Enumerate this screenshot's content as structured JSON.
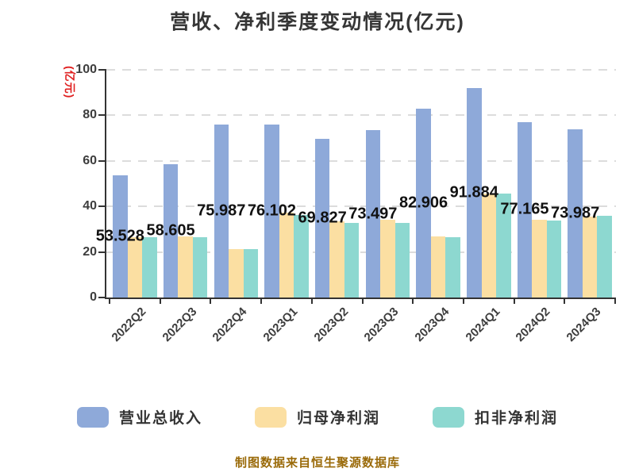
{
  "title": "营收、净利季度变动情况(亿元)",
  "footer": {
    "source_note": "制图数据来自恒生聚源数据库"
  },
  "colors": {
    "revenue_bar": "#8ea9d9",
    "net_profit_bar": "#fbdfa2",
    "non_gaap_bar": "#8dd8d0",
    "title_text": "#363636",
    "axis_text": "#3d3d3d",
    "bar_label_text": "#111111",
    "y_axis_name_red": "#e02020",
    "source_text": "#9a6a09",
    "gridline": "#dcdcdc",
    "axis_line": "#333333"
  },
  "chart_data": {
    "type": "bar",
    "title": "营收、净利季度变动情况(亿元)",
    "ylabel": "(亿元)",
    "xlabel": "",
    "ylim": [
      0,
      100
    ],
    "yticks": [
      0,
      20,
      40,
      60,
      80,
      100
    ],
    "grid": "horizontal-dashed",
    "legend_position": "bottom",
    "categories": [
      "2022Q2",
      "2022Q3",
      "2022Q4",
      "2023Q1",
      "2023Q2",
      "2023Q3",
      "2023Q4",
      "2024Q1",
      "2024Q2",
      "2024Q3"
    ],
    "series": [
      {
        "name": "营业总收入",
        "color": "#8ea9d9",
        "values": [
          53.528,
          58.605,
          75.987,
          76.102,
          69.827,
          73.497,
          82.906,
          91.884,
          77.165,
          73.987
        ],
        "labels": [
          "53.528",
          "58.605",
          "75.987",
          "76.102",
          "69.827",
          "73.497",
          "82.906",
          "91.884",
          "77.165",
          "73.987"
        ]
      },
      {
        "name": "归母净利润",
        "color": "#fbdfa2",
        "values": [
          26.4,
          26.7,
          21.1,
          37.4,
          33.3,
          34.3,
          26.9,
          45.7,
          34.3,
          35.6
        ]
      },
      {
        "name": "扣非净利润",
        "color": "#8dd8d0",
        "values": [
          26.4,
          26.4,
          21.4,
          36.2,
          32.9,
          32.9,
          26.6,
          45.8,
          33.8,
          35.9
        ]
      }
    ]
  }
}
